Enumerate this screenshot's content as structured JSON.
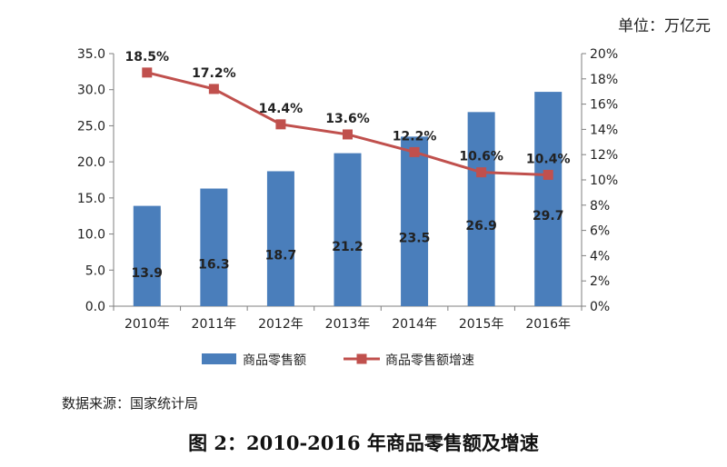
{
  "unit_label": "单位：万亿元",
  "source_note": "数据来源：国家统计局",
  "figure_title": "图 2：2010-2016 年商品零售额及增速",
  "colors": {
    "bar": "#4a7ebb",
    "line": "#c0504d",
    "axis": "#7f7f7f"
  },
  "chart_data": {
    "type": "bar",
    "categories": [
      "2010年",
      "2011年",
      "2012年",
      "2013年",
      "2014年",
      "2015年",
      "2016年"
    ],
    "series": [
      {
        "name": "商品零售额",
        "type": "bar",
        "axis": "left",
        "values": [
          13.9,
          16.3,
          18.7,
          21.2,
          23.5,
          26.9,
          29.7
        ],
        "labels": [
          "13.9",
          "16.3",
          "18.7",
          "21.2",
          "23.5",
          "26.9",
          "29.7"
        ]
      },
      {
        "name": "商品零售额增速",
        "type": "line",
        "axis": "right",
        "values": [
          18.5,
          17.2,
          14.4,
          13.6,
          12.2,
          10.6,
          10.4
        ],
        "labels": [
          "18.5%",
          "17.2%",
          "14.4%",
          "13.6%",
          "12.2%",
          "10.6%",
          "10.4%"
        ]
      }
    ],
    "y_left": {
      "ylim": [
        0,
        35
      ],
      "ticks": [
        "0.0",
        "5.0",
        "10.0",
        "15.0",
        "20.0",
        "25.0",
        "30.0",
        "35.0"
      ]
    },
    "y_right": {
      "ylim": [
        0,
        20
      ],
      "ticks": [
        "0%",
        "2%",
        "4%",
        "6%",
        "8%",
        "10%",
        "12%",
        "14%",
        "16%",
        "18%",
        "20%"
      ]
    },
    "grid": false,
    "legend_position": "bottom"
  }
}
